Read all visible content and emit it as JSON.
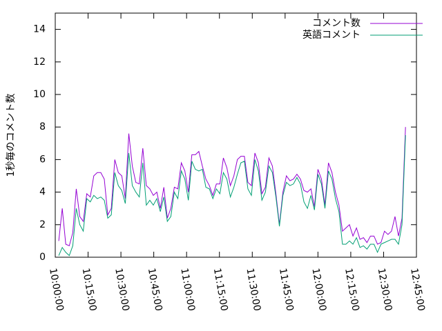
{
  "chart_data": {
    "type": "line",
    "y_label": "1秒毎のコメント数",
    "x": [
      "10:01:36",
      "10:03:12",
      "10:04:48",
      "10:06:24",
      "10:08:00",
      "10:09:36",
      "10:11:12",
      "10:12:48",
      "10:14:24",
      "10:16:00",
      "10:17:36",
      "10:19:12",
      "10:20:48",
      "10:22:24",
      "10:24:00",
      "10:25:36",
      "10:27:12",
      "10:28:48",
      "10:30:24",
      "10:32:00",
      "10:33:36",
      "10:35:12",
      "10:36:48",
      "10:38:24",
      "10:40:00",
      "10:41:36",
      "10:43:12",
      "10:44:48",
      "10:46:24",
      "10:48:00",
      "10:49:36",
      "10:51:12",
      "10:52:48",
      "10:54:24",
      "10:56:00",
      "10:57:36",
      "10:59:12",
      "11:00:48",
      "11:02:24",
      "11:04:00",
      "11:05:36",
      "11:07:12",
      "11:08:48",
      "11:10:24",
      "11:12:00",
      "11:13:36",
      "11:15:12",
      "11:16:48",
      "11:18:24",
      "11:20:00",
      "11:21:36",
      "11:23:12",
      "11:24:48",
      "11:26:24",
      "11:28:00",
      "11:29:36",
      "11:31:12",
      "11:32:48",
      "11:34:24",
      "11:36:00",
      "11:37:36",
      "11:39:12",
      "11:40:48",
      "11:42:24",
      "11:44:00",
      "11:45:36",
      "11:47:12",
      "11:48:48",
      "11:50:24",
      "11:52:00",
      "11:53:36",
      "11:55:12",
      "11:56:48",
      "11:58:24",
      "12:00:00",
      "12:01:36",
      "12:03:12",
      "12:04:48",
      "12:06:24",
      "12:08:00",
      "12:09:36",
      "12:11:12",
      "12:12:48",
      "12:14:24",
      "12:16:00",
      "12:17:36",
      "12:19:12",
      "12:20:48",
      "12:22:24",
      "12:24:00",
      "12:25:36",
      "12:27:12",
      "12:28:48",
      "12:30:24",
      "12:32:00",
      "12:33:36",
      "12:35:12",
      "12:36:48",
      "12:38:24",
      "12:40:00"
    ],
    "series": [
      {
        "name": "コメント数",
        "color": "#9400d3",
        "values": [
          1.0,
          3.0,
          0.8,
          0.7,
          1.5,
          4.2,
          2.5,
          2.2,
          3.9,
          3.7,
          5.0,
          5.2,
          5.2,
          4.8,
          2.6,
          3.0,
          6.0,
          5.2,
          5.0,
          3.6,
          7.6,
          5.6,
          4.6,
          4.5,
          6.7,
          4.4,
          4.2,
          3.8,
          4.0,
          3.0,
          4.3,
          2.4,
          3.0,
          4.3,
          4.2,
          5.8,
          5.3,
          4.0,
          6.3,
          6.3,
          6.5,
          5.6,
          4.8,
          4.4,
          3.8,
          4.5,
          4.5,
          6.1,
          5.5,
          4.4,
          5.0,
          6.0,
          6.2,
          6.2,
          4.6,
          4.4,
          6.4,
          5.8,
          3.9,
          4.3,
          6.1,
          5.6,
          3.9,
          2.0,
          4.0,
          5.0,
          4.7,
          4.8,
          5.1,
          4.8,
          4.1,
          4.0,
          4.2,
          3.1,
          5.4,
          4.8,
          3.2,
          5.8,
          5.2,
          4.0,
          3.2,
          1.6,
          1.8,
          2.0,
          1.3,
          1.8,
          1.1,
          1.2,
          0.9,
          1.3,
          1.3,
          0.8,
          0.9,
          1.6,
          1.4,
          1.6,
          2.5,
          1.3,
          2.4,
          8.0
        ]
      },
      {
        "name": "英語コメント",
        "color": "#009e73",
        "values": [
          0.1,
          0.6,
          0.3,
          0.1,
          0.7,
          3.0,
          2.0,
          1.6,
          3.6,
          3.4,
          3.8,
          3.6,
          3.7,
          3.5,
          2.4,
          2.6,
          5.2,
          4.4,
          4.1,
          3.3,
          6.4,
          4.4,
          4.0,
          3.7,
          5.8,
          3.2,
          3.5,
          3.2,
          3.6,
          2.8,
          3.7,
          2.2,
          2.5,
          4.0,
          3.6,
          5.3,
          4.8,
          3.5,
          5.9,
          5.4,
          5.3,
          5.4,
          4.3,
          4.2,
          3.6,
          4.2,
          3.9,
          5.2,
          4.8,
          3.7,
          4.3,
          5.1,
          5.8,
          5.9,
          4.2,
          3.8,
          6.0,
          5.3,
          3.5,
          4.0,
          5.6,
          5.2,
          3.7,
          1.9,
          3.8,
          4.6,
          4.4,
          4.5,
          4.9,
          4.5,
          3.4,
          3.0,
          3.8,
          2.9,
          5.1,
          4.5,
          3.0,
          5.3,
          4.8,
          3.6,
          2.8,
          0.8,
          0.8,
          1.0,
          0.8,
          1.2,
          0.6,
          0.7,
          0.5,
          0.8,
          0.8,
          0.3,
          0.8,
          0.9,
          1.0,
          1.1,
          1.1,
          0.8,
          2.0,
          7.5
        ]
      }
    ],
    "xlim": [
      "10:00:00",
      "12:45:00"
    ],
    "xticks": [
      "10:00:00",
      "10:15:00",
      "10:30:00",
      "10:45:00",
      "11:00:00",
      "11:15:00",
      "11:30:00",
      "11:45:00",
      "12:00:00",
      "12:15:00",
      "12:30:00",
      "12:45:00"
    ],
    "ylim": [
      0,
      15
    ],
    "yticks": [
      0,
      2,
      4,
      6,
      8,
      10,
      12,
      14
    ],
    "legend": "top-right"
  }
}
